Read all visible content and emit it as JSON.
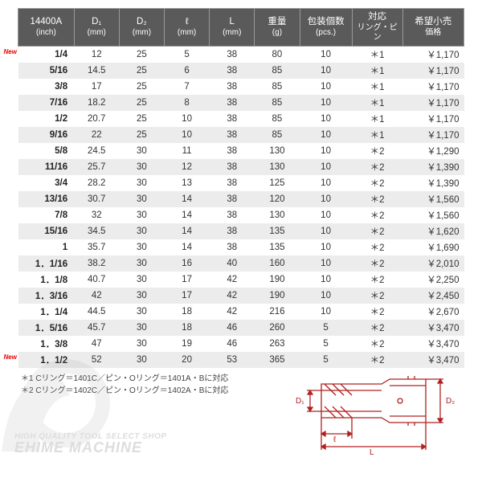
{
  "table": {
    "headers": [
      {
        "main": "14400A",
        "unit": "(inch)"
      },
      {
        "main": "D₁",
        "unit": "(mm)"
      },
      {
        "main": "D₂",
        "unit": "(mm)"
      },
      {
        "main": "ℓ",
        "unit": "(mm)"
      },
      {
        "main": "L",
        "unit": "(mm)"
      },
      {
        "main": "重量",
        "unit": "(g)"
      },
      {
        "main": "包装個数",
        "unit": "(pcs.)"
      },
      {
        "main": "対応",
        "unit": "リング・ピン"
      },
      {
        "main": "希望小売",
        "unit": "価格"
      }
    ],
    "rows": [
      {
        "new": true,
        "cells": [
          "1/4",
          "12",
          "25",
          "5",
          "38",
          "80",
          "10",
          "＊1",
          "￥1,170"
        ]
      },
      {
        "new": false,
        "cells": [
          "5/16",
          "14.5",
          "25",
          "6",
          "38",
          "85",
          "10",
          "＊1",
          "￥1,170"
        ]
      },
      {
        "new": false,
        "cells": [
          "3/8",
          "17",
          "25",
          "7",
          "38",
          "85",
          "10",
          "＊1",
          "￥1,170"
        ]
      },
      {
        "new": false,
        "cells": [
          "7/16",
          "18.2",
          "25",
          "8",
          "38",
          "85",
          "10",
          "＊1",
          "￥1,170"
        ]
      },
      {
        "new": false,
        "cells": [
          "1/2",
          "20.7",
          "25",
          "10",
          "38",
          "85",
          "10",
          "＊1",
          "￥1,170"
        ]
      },
      {
        "new": false,
        "cells": [
          "9/16",
          "22",
          "25",
          "10",
          "38",
          "85",
          "10",
          "＊1",
          "￥1,170"
        ]
      },
      {
        "new": false,
        "cells": [
          "5/8",
          "24.5",
          "30",
          "11",
          "38",
          "130",
          "10",
          "＊2",
          "￥1,290"
        ]
      },
      {
        "new": false,
        "cells": [
          "11/16",
          "25.7",
          "30",
          "12",
          "38",
          "130",
          "10",
          "＊2",
          "￥1,390"
        ]
      },
      {
        "new": false,
        "cells": [
          "3/4",
          "28.2",
          "30",
          "13",
          "38",
          "125",
          "10",
          "＊2",
          "￥1,390"
        ]
      },
      {
        "new": false,
        "cells": [
          "13/16",
          "30.7",
          "30",
          "14",
          "38",
          "120",
          "10",
          "＊2",
          "￥1,560"
        ]
      },
      {
        "new": false,
        "cells": [
          "7/8",
          "32",
          "30",
          "14",
          "38",
          "130",
          "10",
          "＊2",
          "￥1,560"
        ]
      },
      {
        "new": false,
        "cells": [
          "15/16",
          "34.5",
          "30",
          "14",
          "38",
          "135",
          "10",
          "＊2",
          "￥1,620"
        ]
      },
      {
        "new": false,
        "cells": [
          "1",
          "35.7",
          "30",
          "14",
          "38",
          "135",
          "10",
          "＊2",
          "￥1,690"
        ]
      },
      {
        "new": false,
        "cells": [
          "1．1/16",
          "38.2",
          "30",
          "16",
          "40",
          "160",
          "10",
          "＊2",
          "￥2,010"
        ]
      },
      {
        "new": false,
        "cells": [
          "1．1/8",
          "40.7",
          "30",
          "17",
          "42",
          "190",
          "10",
          "＊2",
          "￥2,250"
        ]
      },
      {
        "new": false,
        "cells": [
          "1．3/16",
          "42",
          "30",
          "17",
          "42",
          "190",
          "10",
          "＊2",
          "￥2,450"
        ]
      },
      {
        "new": false,
        "cells": [
          "1．1/4",
          "44.5",
          "30",
          "18",
          "42",
          "216",
          "10",
          "＊2",
          "￥2,670"
        ]
      },
      {
        "new": false,
        "cells": [
          "1．5/16",
          "45.7",
          "30",
          "18",
          "46",
          "260",
          "5",
          "＊2",
          "￥3,470"
        ]
      },
      {
        "new": false,
        "cells": [
          "1．3/8",
          "47",
          "30",
          "19",
          "46",
          "263",
          "5",
          "＊2",
          "￥3,470"
        ]
      },
      {
        "new": true,
        "cells": [
          "1．1/2",
          "52",
          "30",
          "20",
          "53",
          "365",
          "5",
          "＊2",
          "￥3,470"
        ]
      }
    ],
    "header_bg": "#5a5a5a",
    "header_fg": "#ffffff",
    "row_bg_odd": "#ffffff",
    "row_bg_even": "#ececec"
  },
  "footnotes": {
    "line1": "＊1 Cリング＝1401C／ピン・Oリング＝1401A・Bに対応",
    "line2": "＊2 Cリング＝1402C／ピン・Oリング＝1402A・Bに対応"
  },
  "watermark": {
    "sub": "HIGH QUALITY TOOL SELECT SHOP",
    "main": "EHIME MACHINE"
  },
  "diagram": {
    "labels": {
      "d1": "D₁",
      "d2": "D₂",
      "l": "ℓ",
      "L": "L"
    },
    "stroke": "#b02020"
  },
  "new_label": "New"
}
